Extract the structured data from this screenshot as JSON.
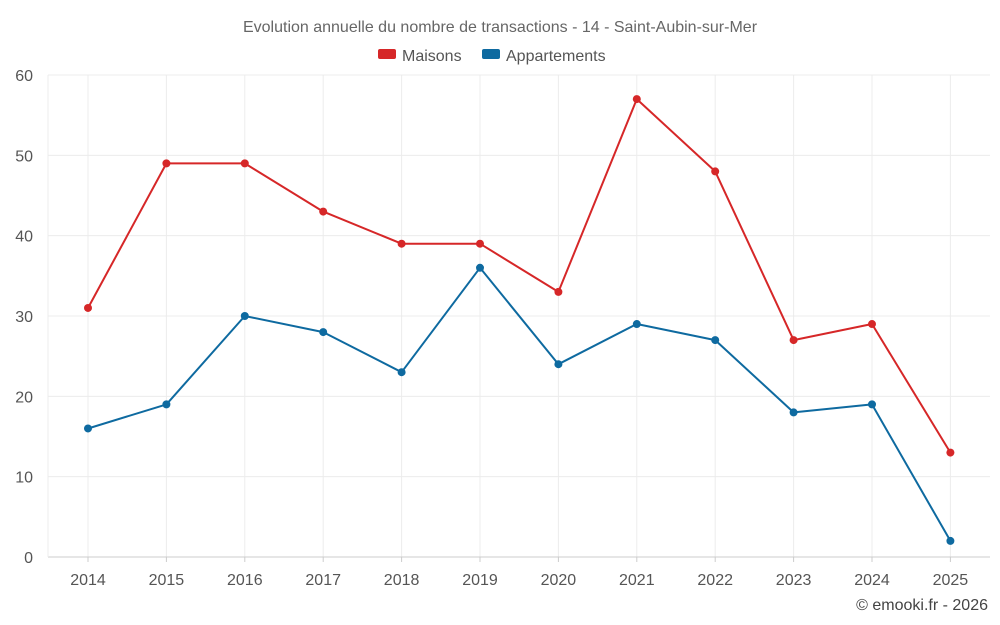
{
  "chart_data": {
    "type": "line",
    "title": "Evolution annuelle du nombre de transactions - 14 - Saint-Aubin-sur-Mer",
    "categories": [
      "2014",
      "2015",
      "2016",
      "2017",
      "2018",
      "2019",
      "2020",
      "2021",
      "2022",
      "2023",
      "2024",
      "2025"
    ],
    "series": [
      {
        "name": "Maisons",
        "color": "#d62728",
        "values": [
          31,
          49,
          49,
          43,
          39,
          39,
          33,
          57,
          48,
          27,
          29,
          13
        ]
      },
      {
        "name": "Appartements",
        "color": "#0e6aa0",
        "values": [
          16,
          19,
          30,
          28,
          23,
          36,
          24,
          29,
          27,
          18,
          19,
          2
        ]
      }
    ],
    "ylim": [
      0,
      60
    ],
    "yticks": [
      0,
      10,
      20,
      30,
      40,
      50,
      60
    ],
    "xlabel": "",
    "ylabel": "",
    "grid": true,
    "legend": "top-center"
  },
  "credit": "© emooki.fr - 2026"
}
